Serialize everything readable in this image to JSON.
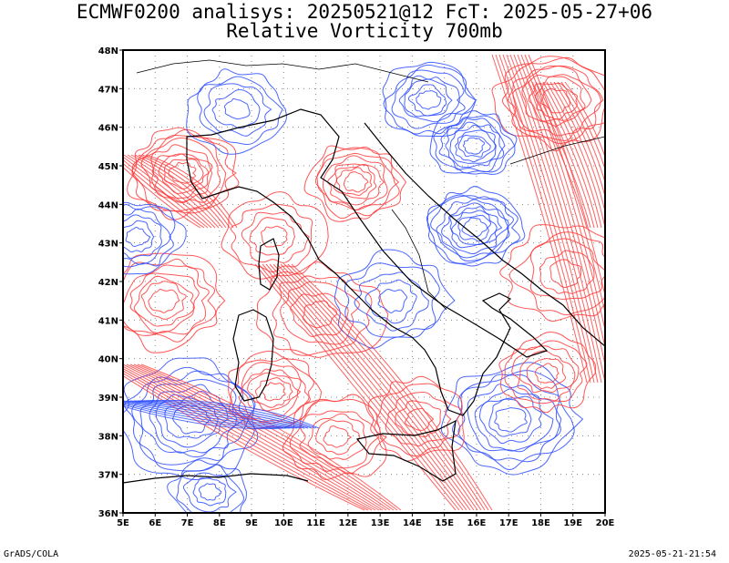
{
  "header": {
    "title_line1": "ECMWF0200 analisys: 20250521@12 FcT: 2025-05-27+06",
    "title_line2": "Relative Vorticity 700mb"
  },
  "map": {
    "lon_labels": [
      "5E",
      "6E",
      "7E",
      "8E",
      "9E",
      "10E",
      "11E",
      "12E",
      "13E",
      "14E",
      "15E",
      "16E",
      "17E",
      "18E",
      "19E",
      "20E"
    ],
    "lat_labels": [
      "48N",
      "47N",
      "46N",
      "45N",
      "44N",
      "43N",
      "42N",
      "41N",
      "40N",
      "39N",
      "38N",
      "37N",
      "36N"
    ],
    "colors": {
      "positive": "#ff3b3b",
      "negative": "#2b4cff",
      "coast": "#000000"
    }
  },
  "footer": {
    "credit": "GrADS/COLA",
    "timestamp": "2025-05-21-21:54"
  }
}
